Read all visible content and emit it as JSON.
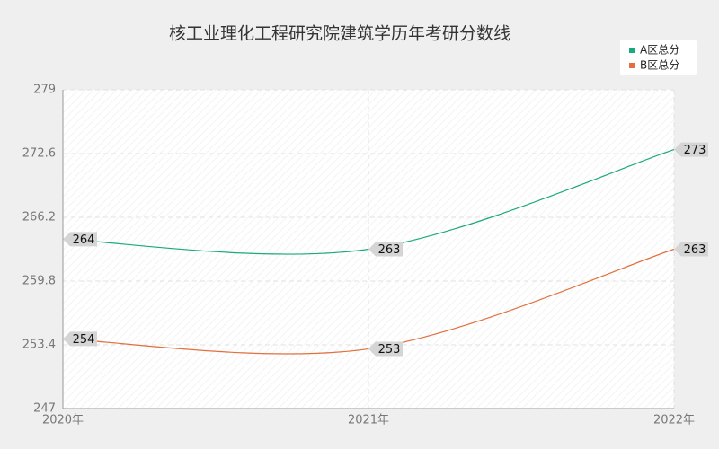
{
  "chart_data": {
    "type": "line",
    "title": "核工业理化工程研究院建筑学历年考研分数线",
    "categories": [
      "2020年",
      "2021年",
      "2022年"
    ],
    "series": [
      {
        "name": "A区总分",
        "color": "#1aa97a",
        "values": [
          264,
          263,
          273
        ]
      },
      {
        "name": "B区总分",
        "color": "#e0703e",
        "values": [
          254,
          253,
          263
        ]
      }
    ],
    "ylim": [
      247,
      279
    ],
    "yticks": [
      247,
      253.4,
      259.8,
      266.2,
      272.6,
      279
    ],
    "grid": true,
    "smooth": true,
    "legend": "top-right"
  }
}
